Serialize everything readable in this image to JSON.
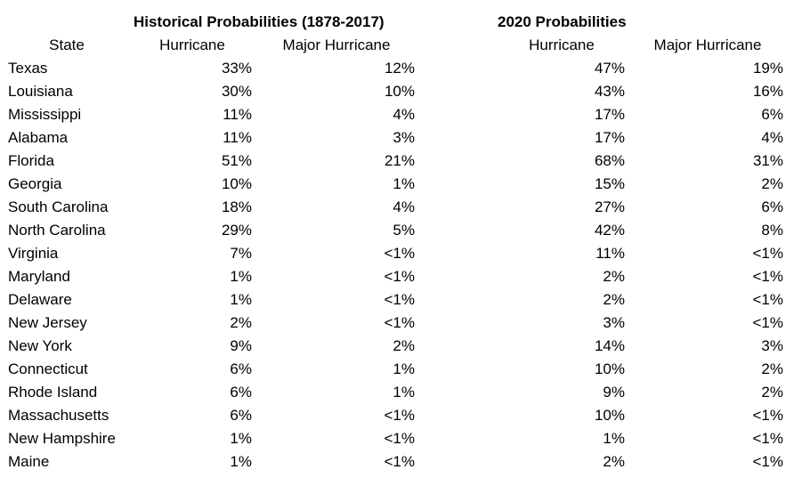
{
  "table": {
    "groups": [
      "Historical Probabilities (1878-2017)",
      "2020 Probabilities"
    ],
    "columns": [
      "State",
      "Hurricane",
      "Major Hurricane",
      "Hurricane",
      "Major Hurricane"
    ],
    "rows": [
      [
        "Texas",
        "33%",
        "12%",
        "47%",
        "19%"
      ],
      [
        "Louisiana",
        "30%",
        "10%",
        "43%",
        "16%"
      ],
      [
        "Mississippi",
        "11%",
        "4%",
        "17%",
        "6%"
      ],
      [
        "Alabama",
        "11%",
        "3%",
        "17%",
        "4%"
      ],
      [
        "Florida",
        "51%",
        "21%",
        "68%",
        "31%"
      ],
      [
        "Georgia",
        "10%",
        "1%",
        "15%",
        "2%"
      ],
      [
        "South Carolina",
        "18%",
        "4%",
        "27%",
        "6%"
      ],
      [
        "North Carolina",
        "29%",
        "5%",
        "42%",
        "8%"
      ],
      [
        "Virginia",
        "7%",
        "<1%",
        "11%",
        "<1%"
      ],
      [
        "Maryland",
        "1%",
        "<1%",
        "2%",
        "<1%"
      ],
      [
        "Delaware",
        "1%",
        "<1%",
        "2%",
        "<1%"
      ],
      [
        "New Jersey",
        "2%",
        "<1%",
        "3%",
        "<1%"
      ],
      [
        "New York",
        "9%",
        "2%",
        "14%",
        "3%"
      ],
      [
        "Connecticut",
        "6%",
        "1%",
        "10%",
        "2%"
      ],
      [
        "Rhode Island",
        "6%",
        "1%",
        "9%",
        "2%"
      ],
      [
        "Massachusetts",
        "6%",
        "<1%",
        "10%",
        "<1%"
      ],
      [
        "New Hampshire",
        "1%",
        "<1%",
        "1%",
        "<1%"
      ],
      [
        "Maine",
        "1%",
        "<1%",
        "2%",
        "<1%"
      ]
    ]
  }
}
